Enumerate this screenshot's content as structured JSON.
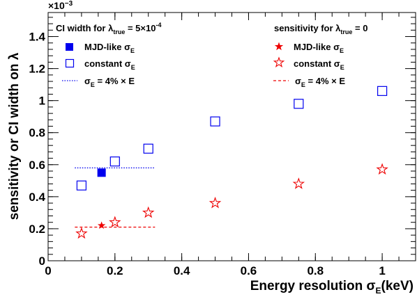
{
  "chart_data": {
    "type": "scatter",
    "title": "",
    "xlabel": "Energy resolution σ_E(keV)",
    "ylabel": "sensitivity or CI width on λ",
    "y_exponent_label": "×10",
    "y_exponent_power": "−3",
    "xlim": [
      0,
      1.1
    ],
    "ylim": [
      0,
      1.55
    ],
    "x_ticks": [
      "0",
      "0.2",
      "0.4",
      "0.6",
      "0.8",
      "1"
    ],
    "y_ticks": [
      "0",
      "0.2",
      "0.4",
      "0.6",
      "0.8",
      "1",
      "1.2",
      "1.4"
    ],
    "grid": false,
    "legend_left": {
      "title": "CI width for λ_true = 5×10^-4",
      "entries": [
        "MJD-like σ_E",
        "constant σ_E",
        "σ_E = 4% × E"
      ]
    },
    "legend_right": {
      "title": "sensitivity for λ_true = 0",
      "entries": [
        "MJD-like σ_E",
        "constant σ_E",
        "σ_E = 4% × E"
      ]
    },
    "colors": {
      "blue": "#0000ee",
      "red": "#ee0000"
    },
    "series": [
      {
        "name": "MJD-like σ_E",
        "group": "ci",
        "marker": "filled-square",
        "color": "#0000ee",
        "x": [
          0.16
        ],
        "y": [
          0.55
        ]
      },
      {
        "name": "constant σ_E",
        "group": "ci",
        "marker": "open-square",
        "color": "#0000ee",
        "x": [
          0.1,
          0.2,
          0.3,
          0.5,
          0.75,
          1.0
        ],
        "y": [
          0.47,
          0.62,
          0.7,
          0.87,
          0.98,
          1.06
        ]
      },
      {
        "name": "σ_E = 4% × E",
        "group": "ci",
        "marker": "dotted-line",
        "color": "#0000ee",
        "x": [
          0.08,
          0.32
        ],
        "y": [
          0.58,
          0.58
        ]
      },
      {
        "name": "MJD-like σ_E",
        "group": "sens",
        "marker": "filled-star",
        "color": "#ee0000",
        "x": [
          0.16
        ],
        "y": [
          0.22
        ]
      },
      {
        "name": "constant σ_E",
        "group": "sens",
        "marker": "open-star",
        "color": "#ee0000",
        "x": [
          0.1,
          0.2,
          0.3,
          0.5,
          0.75,
          1.0
        ],
        "y": [
          0.17,
          0.24,
          0.3,
          0.36,
          0.48,
          0.57
        ]
      },
      {
        "name": "σ_E = 4% × E",
        "group": "sens",
        "marker": "dashed-line",
        "color": "#ee0000",
        "x": [
          0.08,
          0.32
        ],
        "y": [
          0.21,
          0.21
        ]
      }
    ]
  }
}
